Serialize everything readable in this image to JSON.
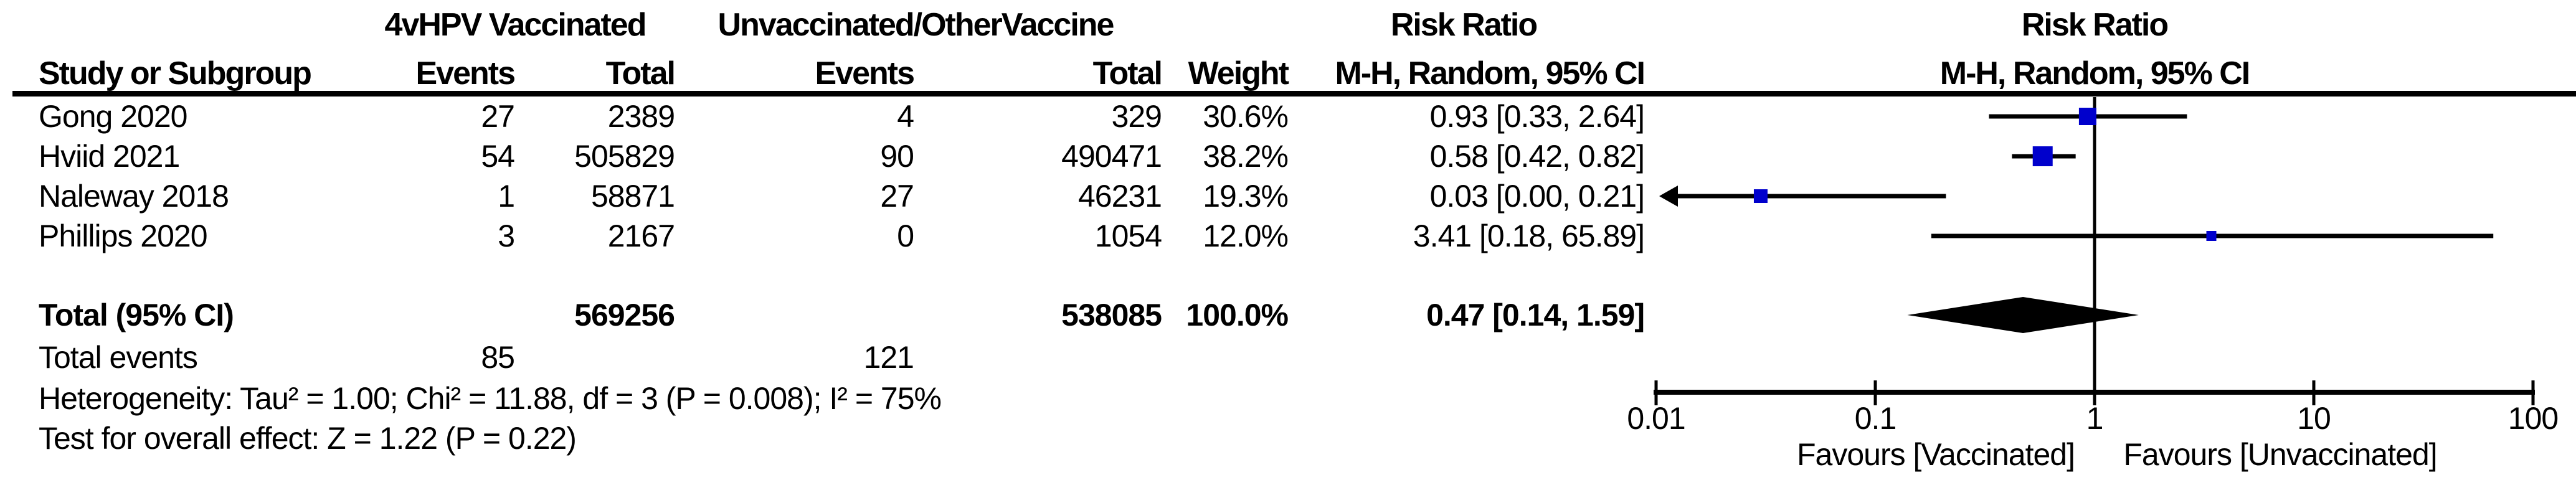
{
  "group_headers": {
    "treatment": "4vHPV Vaccinated",
    "control": "Unvaccinated/OtherVaccine",
    "effect_text_col": "Risk Ratio",
    "effect_plot_col": "Risk Ratio"
  },
  "column_headers": {
    "study": "Study or Subgroup",
    "t_events": "Events",
    "t_total": "Total",
    "c_events": "Events",
    "c_total": "Total",
    "weight": "Weight",
    "ci_text_col": "M-H, Random, 95% CI",
    "ci_plot_col": "M-H, Random, 95% CI"
  },
  "studies": [
    {
      "name": "Gong 2020",
      "t_events": "27",
      "t_total": "2389",
      "c_events": "4",
      "c_total": "329",
      "weight": "30.6%",
      "ci_text": "0.93 [0.33, 2.64]"
    },
    {
      "name": "Hviid 2021",
      "t_events": "54",
      "t_total": "505829",
      "c_events": "90",
      "c_total": "490471",
      "weight": "38.2%",
      "ci_text": "0.58 [0.42, 0.82]"
    },
    {
      "name": "Naleway 2018",
      "t_events": "1",
      "t_total": "58871",
      "c_events": "27",
      "c_total": "46231",
      "weight": "19.3%",
      "ci_text": "0.03 [0.00, 0.21]"
    },
    {
      "name": "Phillips 2020",
      "t_events": "3",
      "t_total": "2167",
      "c_events": "0",
      "c_total": "1054",
      "weight": "12.0%",
      "ci_text": "3.41 [0.18, 65.89]"
    }
  ],
  "total_row": {
    "label": "Total (95% CI)",
    "t_total": "569256",
    "c_total": "538085",
    "weight": "100.0%",
    "ci_text": "0.47 [0.14, 1.59]"
  },
  "total_events_row": {
    "label": "Total events",
    "t_events": "85",
    "c_events": "121"
  },
  "footnotes": {
    "heterogeneity": "Heterogeneity: Tau² = 1.00; Chi² = 11.88, df = 3 (P = 0.008); I² = 75%",
    "overall_effect": "Test for overall effect: Z = 1.22 (P = 0.22)"
  },
  "axis": {
    "tick_labels": [
      "0.01",
      "0.1",
      "1",
      "10",
      "100"
    ],
    "favours_left": "Favours [Vaccinated]",
    "favours_right": "Favours [Unvaccinated]"
  },
  "colors": {
    "marker_blue": "#0000CC",
    "line_black": "#000000",
    "diamond_black": "#000000"
  },
  "chart_data": {
    "type": "scatter",
    "subtype": "forest-plot",
    "title": "Risk Ratio",
    "method": "M-H, Random, 95% CI",
    "x_scale": "log10",
    "x_ticks": [
      0.01,
      0.1,
      1,
      10,
      100
    ],
    "xlim": [
      0.01,
      100
    ],
    "null_line": 1,
    "favours_left": "Favours [Vaccinated]",
    "favours_right": "Favours [Unvaccinated]",
    "studies": [
      {
        "name": "Gong 2020",
        "treatment_events": 27,
        "treatment_total": 2389,
        "control_events": 4,
        "control_total": 329,
        "weight_pct": 30.6,
        "rr": 0.93,
        "ci_low": 0.33,
        "ci_high": 2.64,
        "marker_px": 28,
        "arrow_left": false
      },
      {
        "name": "Hviid 2021",
        "treatment_events": 54,
        "treatment_total": 505829,
        "control_events": 90,
        "control_total": 490471,
        "weight_pct": 38.2,
        "rr": 0.58,
        "ci_low": 0.42,
        "ci_high": 0.82,
        "marker_px": 32,
        "arrow_left": false
      },
      {
        "name": "Naleway 2018",
        "treatment_events": 1,
        "treatment_total": 58871,
        "control_events": 27,
        "control_total": 46231,
        "weight_pct": 19.3,
        "rr": 0.03,
        "ci_low": 0.0,
        "ci_high": 0.21,
        "marker_px": 22,
        "arrow_left": true
      },
      {
        "name": "Phillips 2020",
        "treatment_events": 3,
        "treatment_total": 2167,
        "control_events": 0,
        "control_total": 1054,
        "weight_pct": 12.0,
        "rr": 3.41,
        "ci_low": 0.18,
        "ci_high": 65.89,
        "marker_px": 16,
        "arrow_left": false
      }
    ],
    "pooled": {
      "label": "Total (95% CI)",
      "treatment_total": 569256,
      "control_total": 538085,
      "treatment_events": 85,
      "control_events": 121,
      "weight_pct": 100.0,
      "rr": 0.47,
      "ci_low": 0.14,
      "ci_high": 1.59
    },
    "heterogeneity": {
      "tau2": 1.0,
      "chi2": 11.88,
      "df": 3,
      "p": 0.008,
      "i2_pct": 75
    },
    "overall_effect": {
      "z": 1.22,
      "p": 0.22
    }
  }
}
